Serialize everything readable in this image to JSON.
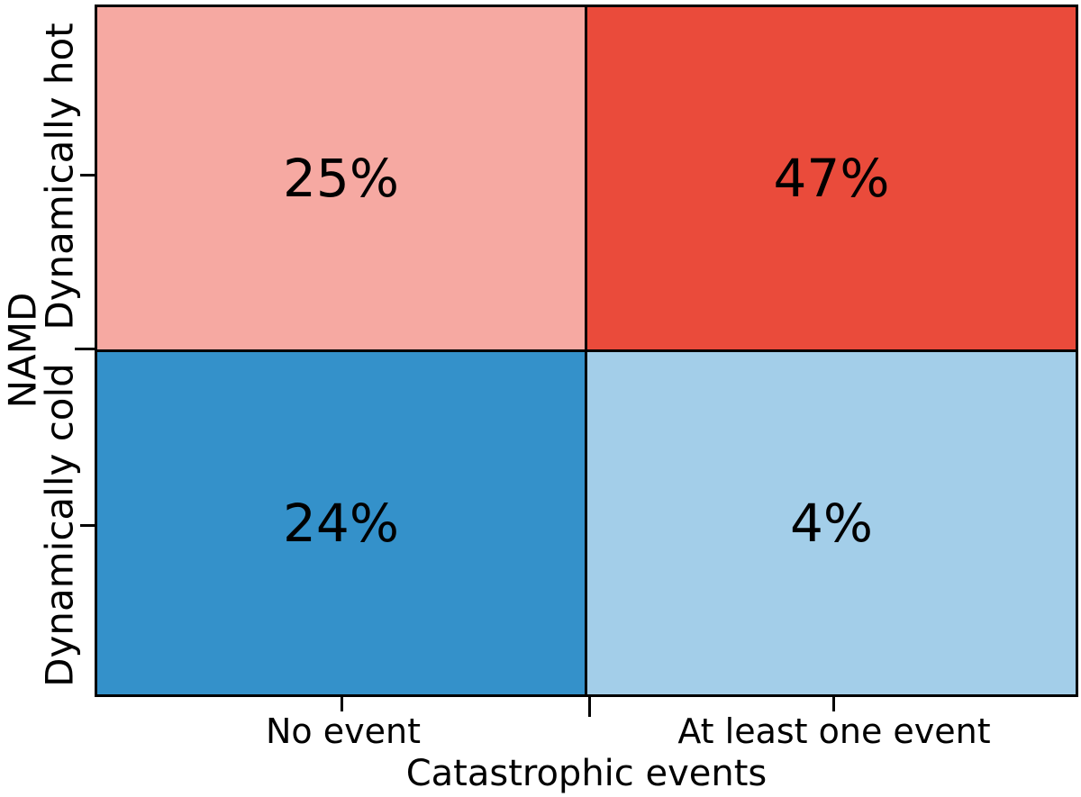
{
  "chart_data": {
    "type": "heatmap",
    "title": "",
    "xlabel": "Catastrophic events",
    "ylabel": "NAMD",
    "x_categories": [
      "No event",
      "At least one event"
    ],
    "y_categories": [
      "Dynamically hot",
      "Dynamically cold"
    ],
    "cells": [
      {
        "row": "Dynamically hot",
        "col": "No event",
        "value_pct": 25,
        "label": "25%",
        "color": "#F6A9A2"
      },
      {
        "row": "Dynamically hot",
        "col": "At least one event",
        "value_pct": 47,
        "label": "47%",
        "color": "#EA4B3B"
      },
      {
        "row": "Dynamically cold",
        "col": "No event",
        "value_pct": 24,
        "label": "24%",
        "color": "#3491CA"
      },
      {
        "row": "Dynamically cold",
        "col": "At least one event",
        "value_pct": 4,
        "label": "4%",
        "color": "#A3CEE9"
      }
    ],
    "layout": {
      "legend": "none",
      "grid": false,
      "border_color": "#000000",
      "text_color": "#000000",
      "background": "#ffffff",
      "x_axis_side": "bottom",
      "y_axis_side": "left"
    }
  }
}
